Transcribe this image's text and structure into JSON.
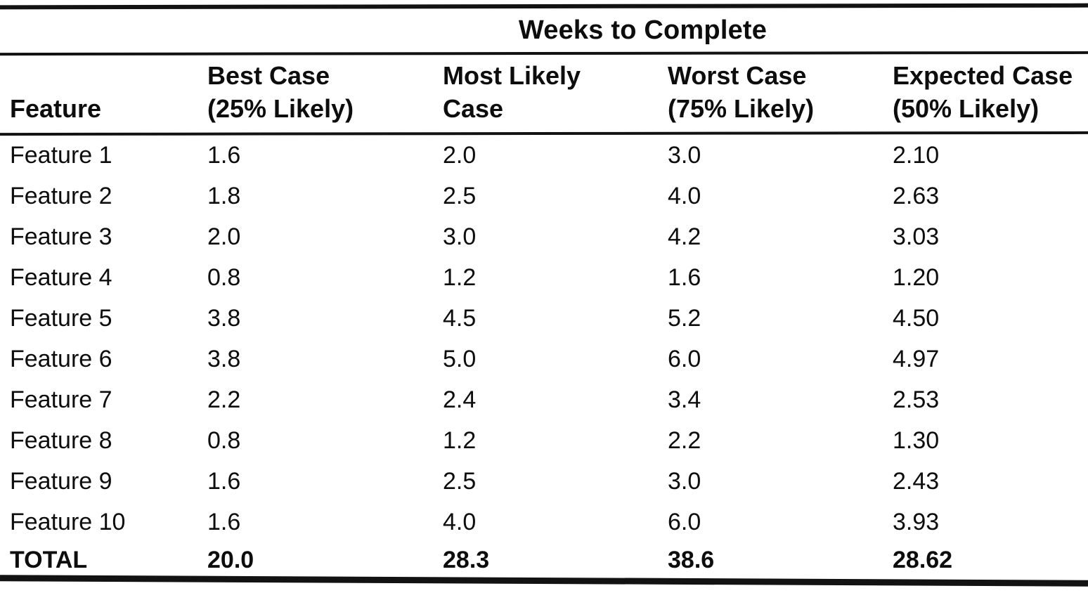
{
  "table": {
    "spanner": "Weeks to Complete",
    "columns": [
      {
        "line1": "Feature",
        "line2": ""
      },
      {
        "line1": "Best Case",
        "line2": "(25% Likely)"
      },
      {
        "line1": "Most Likely",
        "line2": "Case"
      },
      {
        "line1": "Worst Case",
        "line2": "(75% Likely)"
      },
      {
        "line1": "Expected Case",
        "line2": "(50% Likely)"
      }
    ],
    "rows": [
      [
        "Feature 1",
        "1.6",
        "2.0",
        "3.0",
        "2.10"
      ],
      [
        "Feature 2",
        "1.8",
        "2.5",
        "4.0",
        "2.63"
      ],
      [
        "Feature 3",
        "2.0",
        "3.0",
        "4.2",
        "3.03"
      ],
      [
        "Feature 4",
        "0.8",
        "1.2",
        "1.6",
        "1.20"
      ],
      [
        "Feature 5",
        "3.8",
        "4.5",
        "5.2",
        "4.50"
      ],
      [
        "Feature 6",
        "3.8",
        "5.0",
        "6.0",
        "4.97"
      ],
      [
        "Feature 7",
        "2.2",
        "2.4",
        "3.4",
        "2.53"
      ],
      [
        "Feature 8",
        "0.8",
        "1.2",
        "2.2",
        "1.30"
      ],
      [
        "Feature 9",
        "1.6",
        "2.5",
        "3.0",
        "2.43"
      ],
      [
        "Feature 10",
        "1.6",
        "4.0",
        "6.0",
        "3.93"
      ]
    ],
    "total": [
      "TOTAL",
      "20.0",
      "28.3",
      "38.6",
      "28.62"
    ]
  },
  "colors": {
    "text": "#0d0d0d",
    "rule": "#121212",
    "background": "#ffffff"
  }
}
